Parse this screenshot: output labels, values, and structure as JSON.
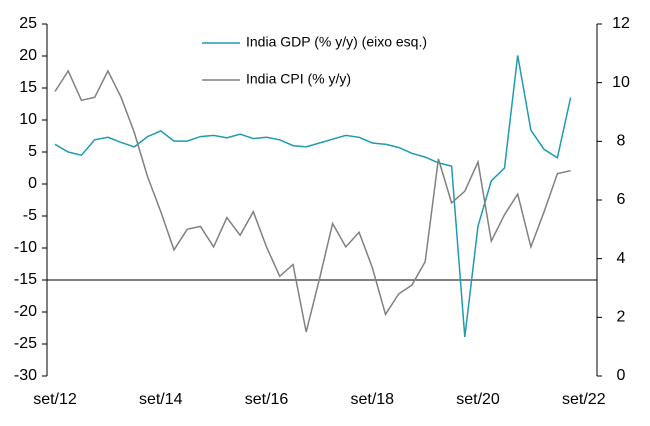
{
  "chart_data": {
    "type": "line",
    "categories": [
      "set/12",
      null,
      null,
      null,
      null,
      null,
      null,
      null,
      "set/14",
      null,
      null,
      null,
      null,
      null,
      null,
      null,
      "set/16",
      null,
      null,
      null,
      null,
      null,
      null,
      null,
      "set/18",
      null,
      null,
      null,
      null,
      null,
      null,
      null,
      "set/20",
      null,
      null,
      null,
      null,
      null,
      null,
      null,
      "set/22"
    ],
    "series": [
      {
        "name": "India GDP (% y/y) (eixo esq.)",
        "color": "#1e9bb0",
        "axis": "y",
        "values": [
          6.2,
          5.0,
          4.5,
          6.9,
          7.3,
          6.5,
          5.8,
          7.4,
          8.3,
          6.7,
          6.7,
          7.4,
          7.6,
          7.2,
          7.8,
          7.1,
          7.3,
          6.9,
          6.0,
          5.8,
          6.4,
          7.0,
          7.6,
          7.3,
          6.4,
          6.2,
          5.7,
          4.8,
          4.2,
          3.3,
          2.8,
          -23.9,
          -6.6,
          0.5,
          2.5,
          20.1,
          8.4,
          5.4,
          4.1,
          13.5,
          null
        ]
      },
      {
        "name": "India CPI (% y/y)",
        "color": "#808080",
        "axis": "y2",
        "values": [
          9.7,
          10.4,
          9.4,
          9.5,
          10.4,
          9.5,
          8.3,
          6.8,
          5.6,
          4.3,
          5.0,
          5.1,
          4.4,
          5.4,
          4.8,
          5.6,
          4.4,
          3.4,
          3.8,
          1.5,
          3.3,
          5.2,
          4.4,
          4.9,
          3.7,
          2.1,
          2.8,
          3.1,
          3.9,
          7.4,
          5.9,
          6.3,
          7.3,
          4.6,
          5.5,
          6.2,
          4.4,
          5.6,
          6.9,
          7.0,
          null
        ]
      }
    ],
    "ylim": [
      -30,
      25
    ],
    "yticks": [
      -30,
      -25,
      -20,
      -15,
      -10,
      -5,
      0,
      5,
      10,
      15,
      20,
      25
    ],
    "y2lim": [
      0,
      12
    ],
    "y2ticks": [
      0,
      2,
      4,
      6,
      8,
      10,
      12
    ],
    "x_axis_at": -15
  }
}
